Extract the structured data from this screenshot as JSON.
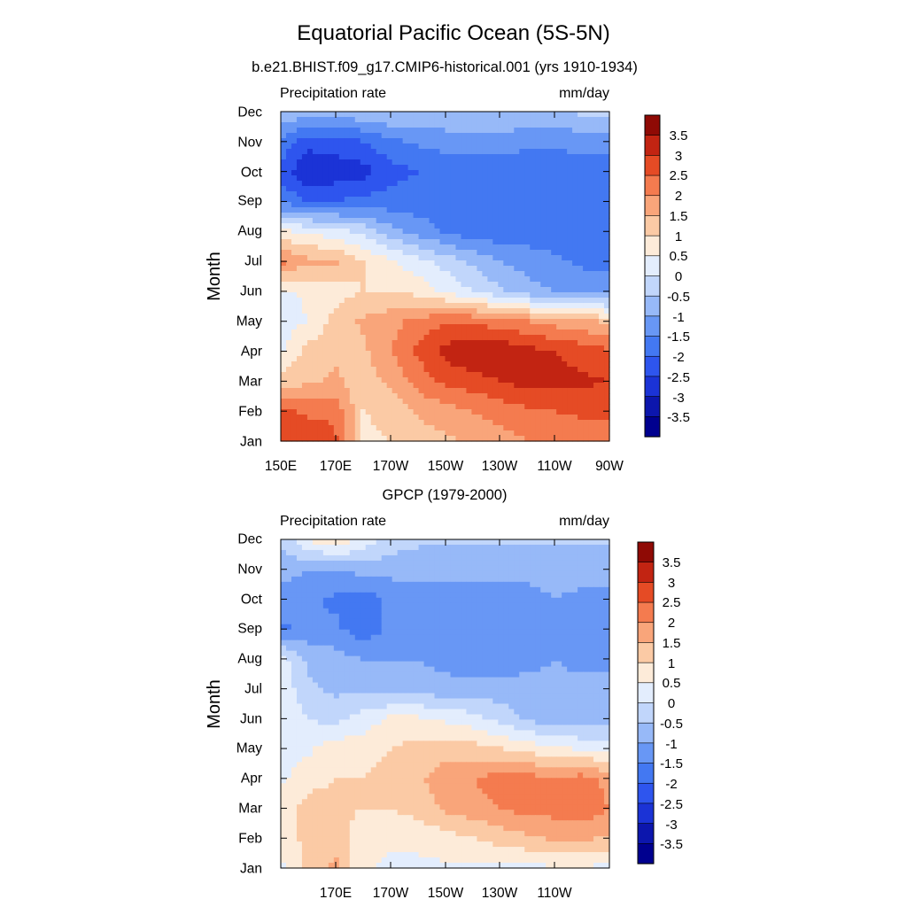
{
  "figure": {
    "title": "Equatorial Pacific Ocean (5S-5N)"
  },
  "chart_data": [
    {
      "type": "heatmap",
      "subtitle": "b.e21.BHIST.f09_g17.CMIP6-historical.001 (yrs 1910-1934)",
      "left_label": "Precipitation rate",
      "units": "mm/day",
      "ylabel": "Month",
      "xlabel": "",
      "x_ticks": [
        "150E",
        "170E",
        "170W",
        "150W",
        "130W",
        "110W",
        "90W"
      ],
      "y_ticks": [
        "Jan",
        "Feb",
        "Mar",
        "Apr",
        "May",
        "Jun",
        "Jul",
        "Aug",
        "Sep",
        "Oct",
        "Nov",
        "Dec"
      ],
      "colorbar_labels": [
        "3.5",
        "3",
        "2.5",
        "2",
        "1.5",
        "1",
        "0.5",
        "0",
        "-0.5",
        "-1",
        "-1.5",
        "-2",
        "-2.5",
        "-3",
        "-3.5"
      ],
      "x": [
        150,
        160,
        170,
        180,
        190,
        200,
        210,
        220,
        230,
        240,
        250,
        260,
        270
      ],
      "y": [
        "Jan",
        "Feb",
        "Mar",
        "Apr",
        "May",
        "Jun",
        "Jul",
        "Aug",
        "Sep",
        "Oct",
        "Nov",
        "Dec"
      ],
      "z": [
        [
          3.0,
          2.8,
          2.6,
          0.8,
          1.0,
          1.2,
          1.4,
          1.6,
          1.8,
          2.0,
          2.1,
          2.2,
          2.3
        ],
        [
          2.6,
          2.4,
          2.4,
          1.0,
          1.2,
          1.6,
          1.8,
          2.0,
          2.2,
          2.4,
          2.5,
          2.6,
          2.6
        ],
        [
          1.2,
          1.4,
          1.6,
          1.2,
          1.6,
          2.2,
          2.6,
          2.8,
          3.0,
          3.2,
          3.1,
          3.1,
          3.0
        ],
        [
          0.4,
          1.2,
          1.4,
          1.4,
          2.0,
          2.6,
          3.2,
          3.4,
          3.4,
          3.2,
          3.0,
          2.8,
          2.6
        ],
        [
          0.2,
          0.5,
          1.2,
          1.6,
          1.8,
          2.2,
          2.4,
          2.4,
          2.2,
          2.0,
          1.8,
          1.6,
          1.4
        ],
        [
          0.4,
          0.6,
          0.8,
          1.0,
          1.0,
          0.8,
          0.4,
          0.0,
          -0.4,
          -0.8,
          -1.0,
          -1.2,
          -1.3
        ],
        [
          2.2,
          1.6,
          1.6,
          1.0,
          0.6,
          0.2,
          -0.2,
          -0.6,
          -1.0,
          -1.2,
          -1.4,
          -1.6,
          -1.6
        ],
        [
          0.6,
          0.4,
          0.2,
          -0.2,
          -0.8,
          -1.2,
          -1.6,
          -1.8,
          -1.8,
          -1.8,
          -1.8,
          -1.8,
          -1.8
        ],
        [
          -1.6,
          -2.0,
          -2.0,
          -1.8,
          -1.8,
          -1.8,
          -1.8,
          -1.8,
          -1.8,
          -1.8,
          -1.8,
          -1.8,
          -1.8
        ],
        [
          -2.2,
          -3.0,
          -2.8,
          -2.7,
          -2.2,
          -2.0,
          -1.8,
          -1.8,
          -1.8,
          -1.8,
          -1.8,
          -1.8,
          -1.8
        ],
        [
          -1.6,
          -2.3,
          -2.2,
          -2.0,
          -1.6,
          -1.4,
          -1.3,
          -1.2,
          -1.2,
          -1.4,
          -1.4,
          -1.3,
          -1.2
        ],
        [
          -0.5,
          -0.7,
          -0.7,
          -0.6,
          -0.5,
          -0.5,
          -0.5,
          -0.5,
          -0.5,
          -0.5,
          -0.5,
          -0.4,
          -0.4
        ]
      ]
    },
    {
      "type": "heatmap",
      "subtitle": "GPCP (1979-2000)",
      "left_label": "Precipitation rate",
      "units": "mm/day",
      "ylabel": "Month",
      "xlabel": "",
      "x_ticks": [
        "170E",
        "170W",
        "150W",
        "130W",
        "110W"
      ],
      "y_ticks": [
        "Jan",
        "Feb",
        "Mar",
        "Apr",
        "May",
        "Jun",
        "Jul",
        "Aug",
        "Sep",
        "Oct",
        "Nov",
        "Dec"
      ],
      "colorbar_labels": [
        "3.5",
        "3",
        "2.5",
        "2",
        "1.5",
        "1",
        "0.5",
        "0",
        "-0.5",
        "-1",
        "-1.5",
        "-2",
        "-2.5",
        "-3",
        "-3.5"
      ],
      "x": [
        150,
        160,
        170,
        180,
        190,
        200,
        210,
        220,
        230,
        240,
        250,
        260,
        270
      ],
      "y": [
        "Jan",
        "Feb",
        "Mar",
        "Apr",
        "May",
        "Jun",
        "Jul",
        "Aug",
        "Sep",
        "Oct",
        "Nov",
        "Dec"
      ],
      "z": [
        [
          0.4,
          1.2,
          1.6,
          0.6,
          0.4,
          0.4,
          0.4,
          0.4,
          0.4,
          0.4,
          0.4,
          0.4,
          0.4
        ],
        [
          0.6,
          1.2,
          1.4,
          0.6,
          0.6,
          0.6,
          0.8,
          1.0,
          1.2,
          1.4,
          1.6,
          1.6,
          1.4
        ],
        [
          0.8,
          1.2,
          1.2,
          1.0,
          1.0,
          1.2,
          1.6,
          1.8,
          2.0,
          2.2,
          2.2,
          2.4,
          2.0
        ],
        [
          0.4,
          0.8,
          1.0,
          1.0,
          1.2,
          1.4,
          1.8,
          2.0,
          2.2,
          2.2,
          2.0,
          2.2,
          1.8
        ],
        [
          0.2,
          0.4,
          0.8,
          0.8,
          1.0,
          1.2,
          1.2,
          1.2,
          1.0,
          0.8,
          0.6,
          0.4,
          0.4
        ],
        [
          0.4,
          0.0,
          -0.2,
          0.2,
          0.6,
          0.6,
          0.4,
          0.2,
          -0.2,
          -0.6,
          -0.8,
          -0.8,
          -0.8
        ],
        [
          0.4,
          -0.4,
          -0.6,
          -0.6,
          -0.8,
          -0.8,
          -0.8,
          -0.8,
          -0.8,
          -0.8,
          -0.8,
          -0.8,
          -0.8
        ],
        [
          0.2,
          -0.6,
          -0.8,
          -1.0,
          -1.0,
          -1.0,
          -1.2,
          -1.3,
          -1.3,
          -1.2,
          -1.0,
          -1.2,
          -1.2
        ],
        [
          -1.6,
          -1.4,
          -1.4,
          -1.8,
          -1.4,
          -1.2,
          -1.4,
          -1.4,
          -1.4,
          -1.2,
          -1.0,
          -1.2,
          -1.2
        ],
        [
          -1.2,
          -1.4,
          -1.6,
          -1.8,
          -1.4,
          -1.2,
          -1.3,
          -1.4,
          -1.4,
          -1.2,
          -1.0,
          -1.1,
          -1.2
        ],
        [
          -0.8,
          -1.0,
          -1.0,
          -0.8,
          -0.8,
          -0.8,
          -0.8,
          -0.8,
          -0.8,
          -0.8,
          -0.8,
          -0.8,
          -0.8
        ],
        [
          -0.4,
          0.6,
          1.0,
          0.4,
          -0.2,
          -0.4,
          -0.4,
          -0.4,
          -0.4,
          -0.4,
          -0.4,
          -0.4,
          -0.4
        ]
      ]
    }
  ],
  "palette": [
    "#00008f",
    "#0c16ad",
    "#1b33d6",
    "#2e55ee",
    "#4378f2",
    "#6897f5",
    "#97b9f8",
    "#c1d6fb",
    "#e3edfd",
    "#fdebd9",
    "#fbcaa5",
    "#f9a57a",
    "#f47b4f",
    "#e54b25",
    "#c22412",
    "#8f0a05"
  ]
}
